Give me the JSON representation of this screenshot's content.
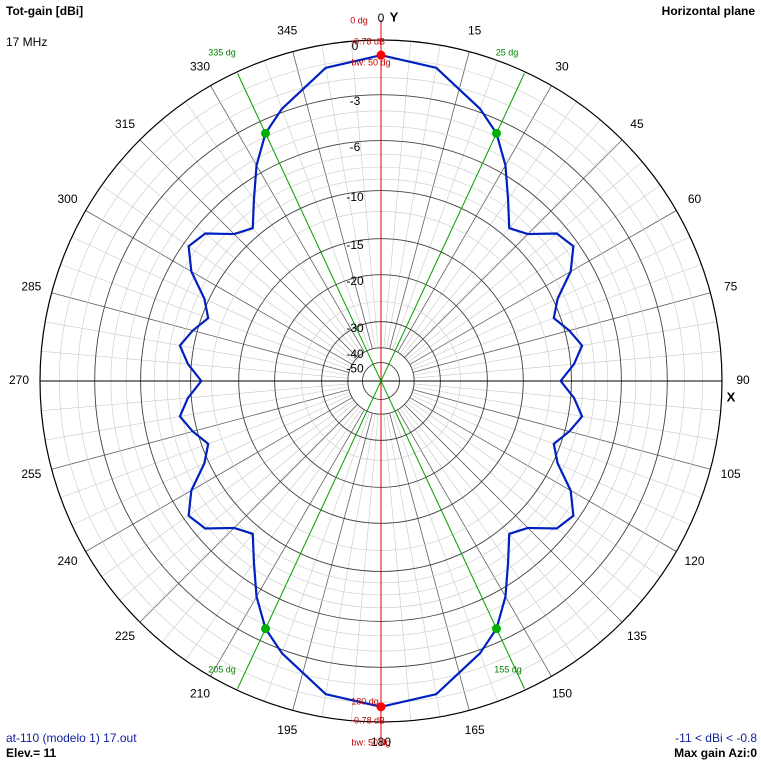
{
  "header": {
    "title": "Tot-gain [dBi]",
    "frequency": "17 MHz",
    "plane": "Horizontal plane"
  },
  "footer": {
    "file": "at-110 (modelo 1) 17.out",
    "elevation": "Elev.= 11",
    "range": "-11 < dBi < -0.8",
    "max_gain": "Max gain Azi:0"
  },
  "colors": {
    "pattern": "#0020c0",
    "main_axis": "#e00000",
    "beamwidth_lines": "#00a000",
    "grid": "#808080",
    "marker_red": "#ff0000",
    "marker_green": "#00b000"
  },
  "chart_data": {
    "type": "line",
    "subtype": "polar",
    "title": "Tot-gain [dBi]",
    "axis_labels": {
      "y": "Y",
      "x": "X"
    },
    "radial_ticks_db": [
      "0",
      "-3",
      "-6",
      "-10",
      "-15",
      "-20",
      "-30",
      "-40",
      "-50"
    ],
    "azimuth_ticks": [
      "0",
      "15",
      "30",
      "45",
      "60",
      "75",
      "90",
      "105",
      "120",
      "135",
      "150",
      "165",
      "180",
      "195",
      "210",
      "225",
      "240",
      "255",
      "270",
      "285",
      "300",
      "315",
      "330",
      "345"
    ],
    "azimuth_tick_values": [
      0,
      15,
      30,
      45,
      60,
      75,
      90,
      105,
      120,
      135,
      150,
      165,
      180,
      195,
      210,
      225,
      240,
      255,
      270,
      285,
      300,
      315,
      330,
      345
    ],
    "series": [
      {
        "azimuth_deg": [
          0,
          10,
          20,
          25,
          30,
          35,
          40,
          45,
          50,
          55,
          60,
          65,
          70,
          75,
          80,
          85,
          90,
          95,
          100,
          105,
          110,
          115,
          120,
          125,
          130,
          135,
          140,
          145,
          150,
          155,
          160,
          170,
          180,
          190,
          200,
          205,
          210,
          215,
          220,
          225,
          230,
          235,
          240,
          245,
          250,
          255,
          260,
          265,
          270,
          275,
          280,
          285,
          290,
          295,
          300,
          305,
          310,
          315,
          320,
          325,
          330,
          335,
          340,
          350,
          360
        ],
        "gain_dbi": [
          -0.78,
          -1.2,
          -2.8,
          -3.8,
          -5.4,
          -7.4,
          -9.2,
          -8.5,
          -6.8,
          -6.4,
          -7.6,
          -9.6,
          -10.6,
          -9.6,
          -8.8,
          -9.7,
          -11.0,
          -9.7,
          -8.8,
          -9.6,
          -10.6,
          -9.6,
          -7.6,
          -6.4,
          -6.8,
          -8.5,
          -9.2,
          -7.4,
          -5.4,
          -3.8,
          -2.8,
          -1.2,
          -0.78,
          -1.2,
          -2.8,
          -3.8,
          -5.4,
          -7.4,
          -9.2,
          -8.5,
          -6.8,
          -6.4,
          -7.6,
          -9.6,
          -10.6,
          -9.6,
          -8.8,
          -9.7,
          -11.0,
          -9.7,
          -8.8,
          -9.6,
          -10.6,
          -9.6,
          -7.6,
          -6.4,
          -6.8,
          -8.5,
          -9.2,
          -7.4,
          -5.4,
          -3.8,
          -2.8,
          -1.2,
          -0.78
        ]
      }
    ],
    "markers": {
      "main_lobe": [
        {
          "azimuth_deg": 0,
          "label_dir": "0 dg",
          "label_gain": "-0.78 dB",
          "label_bw": "bw: 50 dg"
        },
        {
          "azimuth_deg": 180,
          "label_dir": "180 dg",
          "label_gain": "-0.78 dB",
          "label_bw": "bw: 50 dg"
        }
      ],
      "beamwidth_points": [
        {
          "azimuth_deg": 25,
          "gain_dbi": -3.8,
          "label": "25 dg"
        },
        {
          "azimuth_deg": 335,
          "gain_dbi": -3.8,
          "label": "335 dg"
        },
        {
          "azimuth_deg": 155,
          "gain_dbi": -3.8,
          "label": "155 dg"
        },
        {
          "azimuth_deg": 205,
          "gain_dbi": -3.8,
          "label": "205 dg"
        }
      ]
    },
    "grid": true
  }
}
